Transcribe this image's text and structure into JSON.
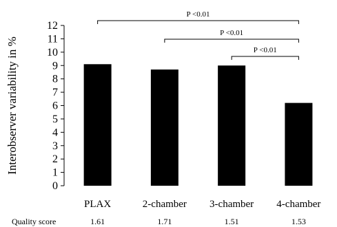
{
  "chart_data": {
    "type": "bar",
    "categories": [
      "PLAX",
      "2-chamber",
      "3-chamber",
      "4-chamber"
    ],
    "values": [
      9.1,
      8.7,
      9.0,
      6.2
    ],
    "ylabel": "Interobserver variability in %",
    "xlabel": "",
    "ylim": [
      0,
      12
    ],
    "yticks": [
      0,
      1,
      2,
      3,
      4,
      5,
      6,
      7,
      8,
      9,
      10,
      11,
      12
    ],
    "bar_color": "#000000",
    "grid": false,
    "significance": [
      {
        "from": "PLAX",
        "to": "4-chamber",
        "label": "P <0.01"
      },
      {
        "from": "2-chamber",
        "to": "4-chamber",
        "label": "P <0.01"
      },
      {
        "from": "3-chamber",
        "to": "4-chamber",
        "label": "P <0.01"
      }
    ],
    "quality_score": {
      "label": "Quality score",
      "values": [
        "1.61",
        "1.71",
        "1.51",
        "1.53"
      ]
    }
  }
}
